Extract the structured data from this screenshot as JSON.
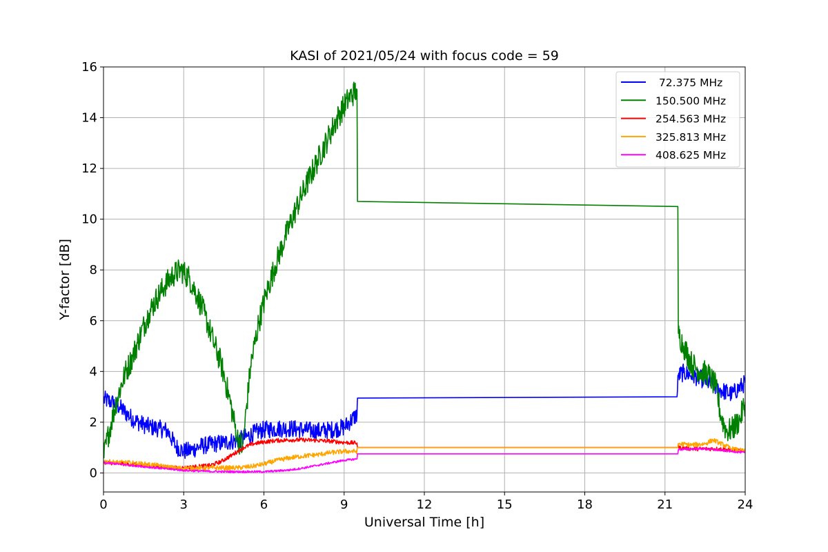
{
  "chart_data": {
    "type": "line",
    "title": "KASI of 2021/05/24 with focus code = 59",
    "xlabel": "Universal Time [h]",
    "ylabel": "Y-factor [dB]",
    "xlim": [
      0,
      24
    ],
    "ylim": [
      -0.75,
      16
    ],
    "x_ticks": [
      0,
      3,
      6,
      9,
      12,
      15,
      18,
      21,
      24
    ],
    "x_tick_labels": [
      "0",
      "3",
      "6",
      "9",
      "12",
      "15",
      "18",
      "21",
      "24"
    ],
    "y_ticks": [
      0,
      2,
      4,
      6,
      8,
      10,
      12,
      14,
      16
    ],
    "y_tick_labels": [
      "0",
      "2",
      "4",
      "6",
      "8",
      "10",
      "12",
      "14",
      "16"
    ],
    "grid": true,
    "legend_position": "top-right",
    "series": [
      {
        "name": " 72.375 MHz",
        "color": "#0000ff",
        "noise": 0.35,
        "x": [
          0,
          0.3,
          0.6,
          0.9,
          1.2,
          1.5,
          1.8,
          2.1,
          2.4,
          2.7,
          3.0,
          3.3,
          3.6,
          3.9,
          4.2,
          4.5,
          4.8,
          5.1,
          5.4,
          5.7,
          6.0,
          6.5,
          7.0,
          7.5,
          8.0,
          8.5,
          9.0,
          9.48,
          9.5,
          21.45,
          21.5,
          21.7,
          22.0,
          22.5,
          23.0,
          23.5,
          24.0
        ],
        "y": [
          2.9,
          2.8,
          2.6,
          2.3,
          2.05,
          1.9,
          1.8,
          1.75,
          1.65,
          1.05,
          0.85,
          0.9,
          1.05,
          1.1,
          1.15,
          1.2,
          1.25,
          1.3,
          1.45,
          1.6,
          1.7,
          1.75,
          1.75,
          1.7,
          1.65,
          1.7,
          1.8,
          2.3,
          2.95,
          3.0,
          3.85,
          3.95,
          3.85,
          3.65,
          3.3,
          3.1,
          3.55
        ]
      },
      {
        "name": "150.500 MHz",
        "color": "#008000",
        "noise": 0.5,
        "x": [
          0,
          0.2,
          0.5,
          0.8,
          1.1,
          1.4,
          1.7,
          2.0,
          2.3,
          2.6,
          2.9,
          3.2,
          3.5,
          3.8,
          4.1,
          4.4,
          4.7,
          5.0,
          5.2,
          5.5,
          5.8,
          6.1,
          6.4,
          6.8,
          7.2,
          7.6,
          8.0,
          8.4,
          8.8,
          9.2,
          9.48,
          9.5,
          21.48,
          21.5,
          21.7,
          22.0,
          22.3,
          22.6,
          22.9,
          23.1,
          23.3,
          23.5,
          23.8,
          24.0
        ],
        "y": [
          0.6,
          1.6,
          2.9,
          3.9,
          4.6,
          5.5,
          6.3,
          6.9,
          7.4,
          7.8,
          8.0,
          7.7,
          7.0,
          6.2,
          5.2,
          4.3,
          3.0,
          1.4,
          1.0,
          4.2,
          5.9,
          7.1,
          8.1,
          9.3,
          10.4,
          11.4,
          12.3,
          13.2,
          14.1,
          14.8,
          15.1,
          10.7,
          10.5,
          5.5,
          5.0,
          4.3,
          4.0,
          3.9,
          3.4,
          2.2,
          1.65,
          1.7,
          2.1,
          2.8
        ]
      },
      {
        "name": "254.563 MHz",
        "color": "#ff0000",
        "noise": 0.08,
        "x": [
          0,
          0.5,
          1.0,
          1.5,
          2.0,
          2.5,
          3.0,
          3.5,
          4.0,
          4.4,
          4.8,
          5.2,
          5.6,
          6.0,
          6.5,
          7.0,
          7.5,
          8.0,
          8.5,
          9.0,
          9.48,
          9.5,
          21.48,
          21.5,
          22.0,
          22.5,
          23.0,
          23.5,
          24.0
        ],
        "y": [
          0.42,
          0.38,
          0.34,
          0.3,
          0.25,
          0.2,
          0.2,
          0.25,
          0.3,
          0.45,
          0.7,
          0.98,
          1.15,
          1.22,
          1.28,
          1.3,
          1.3,
          1.28,
          1.25,
          1.2,
          1.18,
          1.0,
          1.0,
          1.0,
          0.95,
          0.95,
          0.95,
          0.9,
          0.85
        ]
      },
      {
        "name": "325.813 MHz",
        "color": "#ffa500",
        "noise": 0.09,
        "x": [
          0,
          0.5,
          1.0,
          1.5,
          2.0,
          2.5,
          3.0,
          3.5,
          4.0,
          4.5,
          5.0,
          5.5,
          6.0,
          6.5,
          7.0,
          7.5,
          8.0,
          8.5,
          9.0,
          9.48,
          9.5,
          21.48,
          21.5,
          22.0,
          22.5,
          22.8,
          23.0,
          23.5,
          24.0
        ],
        "y": [
          0.45,
          0.42,
          0.4,
          0.35,
          0.3,
          0.22,
          0.18,
          0.18,
          0.2,
          0.2,
          0.2,
          0.25,
          0.35,
          0.5,
          0.6,
          0.67,
          0.72,
          0.8,
          0.85,
          0.85,
          1.0,
          1.0,
          1.15,
          1.1,
          1.15,
          1.3,
          1.2,
          0.95,
          0.85
        ]
      },
      {
        "name": "408.625 MHz",
        "color": "#ff00ff",
        "noise": 0.04,
        "x": [
          0,
          0.5,
          1.0,
          1.5,
          2.0,
          2.5,
          3.0,
          3.5,
          4.0,
          4.5,
          5.0,
          5.5,
          6.0,
          6.5,
          7.0,
          7.5,
          8.0,
          8.5,
          9.0,
          9.48,
          9.5,
          21.48,
          21.5,
          22.0,
          22.5,
          23.0,
          23.5,
          24.0
        ],
        "y": [
          0.4,
          0.36,
          0.3,
          0.25,
          0.2,
          0.15,
          0.1,
          0.08,
          0.06,
          0.05,
          0.05,
          0.05,
          0.05,
          0.08,
          0.12,
          0.2,
          0.3,
          0.4,
          0.5,
          0.55,
          0.75,
          0.75,
          0.92,
          0.95,
          0.95,
          0.9,
          0.85,
          0.8
        ]
      }
    ]
  }
}
